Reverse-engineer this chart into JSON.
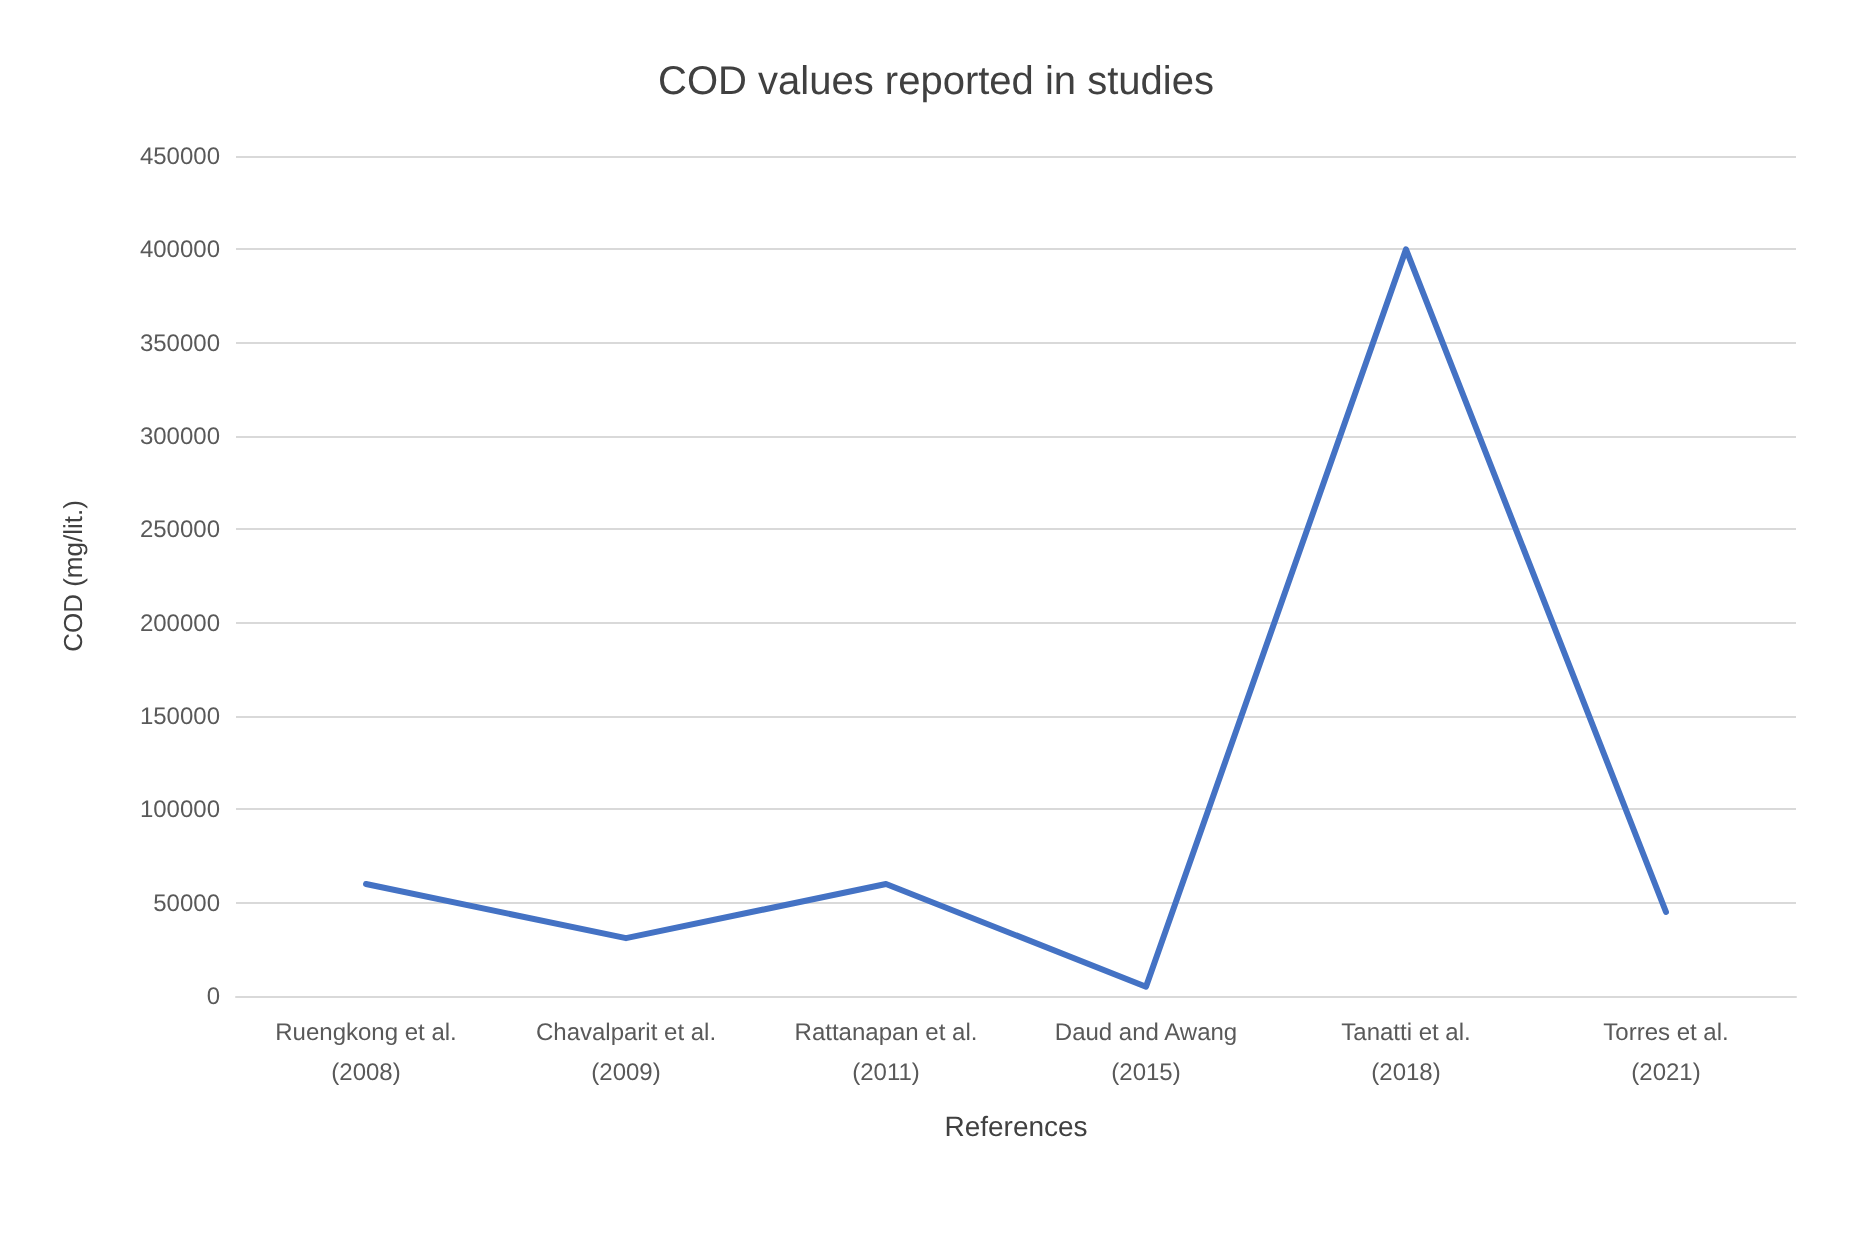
{
  "chart_data": {
    "type": "line",
    "title": "COD values reported in studies",
    "xlabel": "References",
    "ylabel": "COD (mg/lit.)",
    "categories": [
      "Ruengkong et al.\n(2008)",
      "Chavalparit et al.\n(2009)",
      "Rattanapan et al.\n(2011)",
      "Daud and Awang\n(2015)",
      "Tanatti et al.\n(2018)",
      "Torres et al.\n(2021)"
    ],
    "series": [
      {
        "color": "#4472c4",
        "values": [
          60000,
          31000,
          60000,
          5000,
          400000,
          45000
        ]
      }
    ],
    "ylim": [
      0,
      450000
    ],
    "yticks": [
      0,
      50000,
      100000,
      150000,
      200000,
      250000,
      300000,
      350000,
      400000,
      450000
    ],
    "grid": "y",
    "marker": "none",
    "line_style": "solid"
  }
}
